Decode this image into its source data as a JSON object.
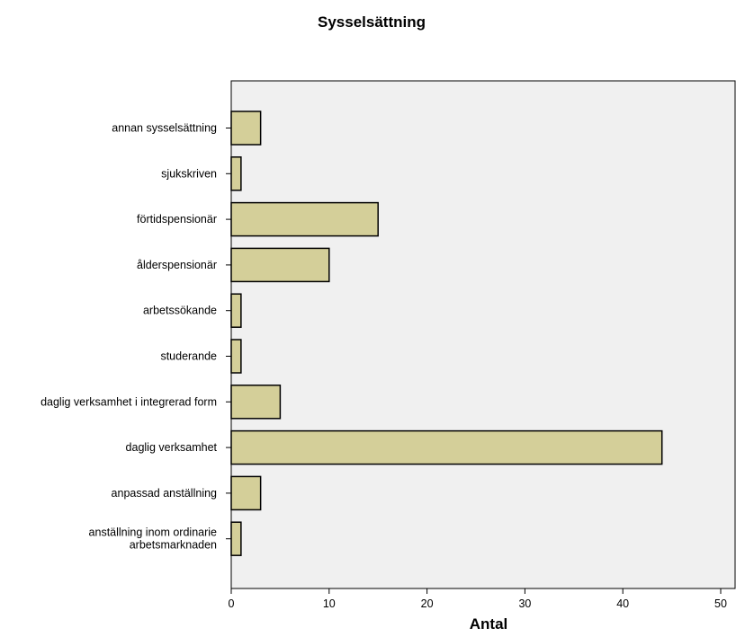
{
  "chart_data": {
    "type": "bar",
    "orientation": "horizontal",
    "title": "Sysselsättning",
    "xlabel": "Antal",
    "ylabel": "",
    "xlim": [
      0,
      50
    ],
    "x_ticks": [
      "0",
      "10",
      "20",
      "30",
      "40",
      "50"
    ],
    "grid": false,
    "categories": [
      "annan sysselsättning",
      "sjukskriven",
      "förtidspensionär",
      "ålderspensionär",
      "arbetssökande",
      "studerande",
      "daglig verksamhet i integrerad form",
      "daglig verksamhet",
      "anpassad anställning",
      "anställning inom ordinarie arbetsmarknaden"
    ],
    "category_lines": [
      [
        "annan sysselsättning"
      ],
      [
        "sjukskriven"
      ],
      [
        "förtidspensionär"
      ],
      [
        "ålderspensionär"
      ],
      [
        "arbetssökande"
      ],
      [
        "studerande"
      ],
      [
        "daglig verksamhet i integrerad form"
      ],
      [
        "daglig verksamhet"
      ],
      [
        "anpassad anställning"
      ],
      [
        "anställning inom ordinarie",
        "arbetsmarknaden"
      ]
    ],
    "values": [
      3,
      1,
      15,
      10,
      1,
      1,
      5,
      44,
      3,
      1
    ],
    "colors": {
      "bar_fill": "#d4cf99",
      "bar_stroke": "#000000",
      "plot_background": "#f0f0f0"
    }
  }
}
